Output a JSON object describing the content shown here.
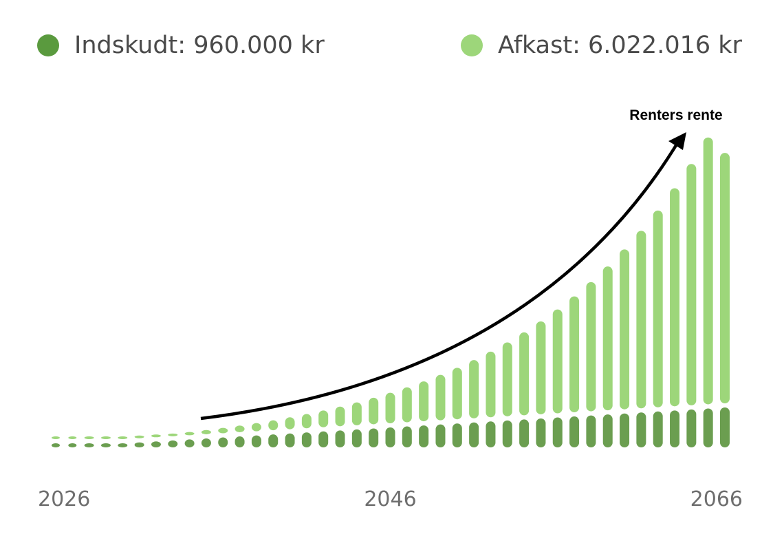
{
  "legend": {
    "contributions": {
      "label": "Indskudt: 960.000 kr",
      "color": "#5a9a3e"
    },
    "returns": {
      "label": "Afkast: 6.022.016 kr",
      "color": "#9dd67a"
    }
  },
  "annotation": {
    "text": "Renters rente"
  },
  "chart_data": {
    "type": "bar",
    "stacked": true,
    "x": [
      2026,
      2027,
      2028,
      2029,
      2030,
      2031,
      2032,
      2033,
      2034,
      2035,
      2036,
      2037,
      2038,
      2039,
      2040,
      2041,
      2042,
      2043,
      2044,
      2045,
      2046,
      2047,
      2048,
      2049,
      2050,
      2051,
      2052,
      2053,
      2054,
      2055,
      2056,
      2057,
      2058,
      2059,
      2060,
      2061,
      2062,
      2063,
      2064,
      2065,
      2066
    ],
    "x_ticks": [
      "2026",
      "2046",
      "2066"
    ],
    "series": [
      {
        "name": "Indskudt",
        "color": "#6b9e50",
        "values": [
          0,
          24000,
          48000,
          72000,
          96000,
          120000,
          144000,
          168000,
          192000,
          216000,
          240000,
          264000,
          288000,
          312000,
          336000,
          360000,
          384000,
          408000,
          432000,
          456000,
          480000,
          504000,
          528000,
          552000,
          576000,
          600000,
          624000,
          648000,
          672000,
          696000,
          720000,
          744000,
          768000,
          792000,
          816000,
          840000,
          864000,
          888000,
          912000,
          936000,
          960000
        ]
      },
      {
        "name": "Afkast",
        "color": "#9dd67a",
        "values": [
          0,
          1700,
          5300,
          10900,
          18800,
          29300,
          42500,
          58800,
          78500,
          101900,
          129400,
          161400,
          198300,
          240600,
          288700,
          343200,
          404700,
          473800,
          551100,
          637500,
          733900,
          841100,
          960200,
          1092200,
          1238400,
          1400200,
          1578900,
          1776300,
          1993900,
          2233700,
          2497700,
          2788200,
          3107700,
          3458800,
          3844500,
          4268300,
          4733300,
          5243500,
          5803100,
          6417000,
          6022016
        ]
      }
    ]
  }
}
